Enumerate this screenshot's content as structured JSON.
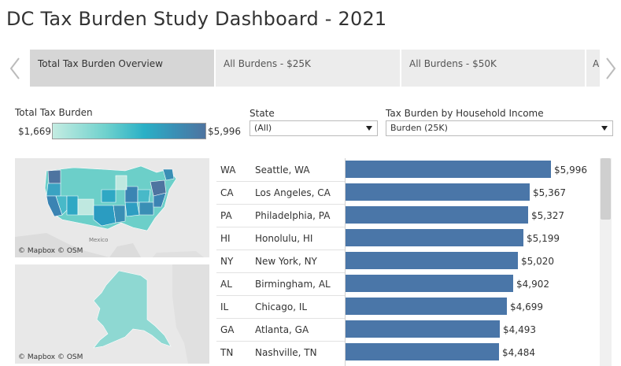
{
  "title": "DC Tax Burden Study Dashboard - 2021",
  "tabs": [
    {
      "label": "Total Tax Burden Overview",
      "active": true
    },
    {
      "label": "All Burdens - $25K",
      "active": false
    },
    {
      "label": "All Burdens - $50K",
      "active": false
    },
    {
      "label": "A",
      "active": false
    }
  ],
  "legend": {
    "title": "Total Tax Burden",
    "min": "$1,669",
    "max": "$5,996"
  },
  "filters": {
    "state": {
      "label": "State",
      "value": "(All)"
    },
    "income": {
      "label": "Tax Burden by Household Income",
      "value": "Burden (25K)"
    }
  },
  "maps": {
    "mainland_credit": "© Mapbox  © OSM",
    "mexico_label": "Mexico",
    "alaska_credit": "© Mapbox  © OSM"
  },
  "colors": {
    "bar": "#4a76a8",
    "map_low": "#c4ece2",
    "map_high": "#4e74a0"
  },
  "chart_data": {
    "type": "bar",
    "orientation": "horizontal",
    "categories": [
      "Seattle, WA",
      "Los Angeles, CA",
      "Philadelphia, PA",
      "Honolulu, HI",
      "New York, NY",
      "Birmingham, AL",
      "Chicago, IL",
      "Atlanta, GA",
      "Nashville, TN"
    ],
    "state_codes": [
      "WA",
      "CA",
      "PA",
      "HI",
      "NY",
      "AL",
      "IL",
      "GA",
      "TN"
    ],
    "values": [
      5996,
      5367,
      5327,
      5199,
      5020,
      4902,
      4699,
      4493,
      4484
    ],
    "labels": [
      "$5,996",
      "$5,367",
      "$5,327",
      "$5,199",
      "$5,020",
      "$4,902",
      "$4,699",
      "$4,493",
      "$4,484"
    ],
    "xlim": [
      0,
      5996
    ]
  }
}
